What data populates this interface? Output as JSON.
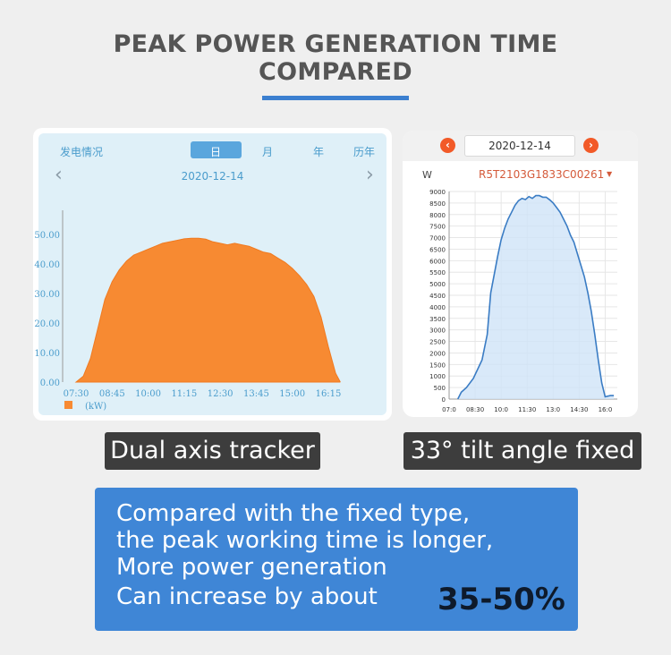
{
  "title": {
    "line1": "PEAK POWER GENERATION TIME",
    "line2": "COMPARED"
  },
  "left_panel": {
    "tabs": [
      "发电情况",
      "日",
      "月",
      "年",
      "历年"
    ],
    "active_tab": "日",
    "date": "2020-12-14",
    "legend_unit": "(kW)"
  },
  "right_panel": {
    "date": "2020-12-14",
    "unit": "W",
    "device": "R5T2103G1833C00261"
  },
  "labels": {
    "left": "Dual axis tracker",
    "right": "33° tilt angle fixed"
  },
  "summary": {
    "lines": [
      "Compared with the fixed type,",
      "the peak working time is longer,",
      "More power generation",
      "Can increase by about"
    ],
    "highlight": "35-50%"
  },
  "colors": {
    "accent": "#3f86d6",
    "left_fill": "#f78a32",
    "right_line": "#3a7cc4",
    "right_fill": "#cfe3f7"
  },
  "chart_data": [
    {
      "type": "area",
      "title": "",
      "ylabel": "",
      "unit": "kW",
      "ylim": [
        0,
        60
      ],
      "yticks": [
        "0.00",
        "10.00",
        "20.00",
        "30.00",
        "40.00",
        "50.00"
      ],
      "xticks": [
        "07:30",
        "08:45",
        "10:00",
        "11:15",
        "12:30",
        "13:45",
        "15:00",
        "16:15"
      ],
      "series": [
        {
          "x": [
            "07:30",
            "07:45",
            "08:00",
            "08:15",
            "08:30",
            "08:45",
            "09:00",
            "09:15",
            "09:30",
            "09:45",
            "10:00",
            "10:15",
            "10:30",
            "10:45",
            "11:00",
            "11:15",
            "11:30",
            "11:45",
            "12:00",
            "12:15",
            "12:30",
            "12:45",
            "13:00",
            "13:15",
            "13:30",
            "13:45",
            "14:00",
            "14:15",
            "14:30",
            "14:45",
            "15:00",
            "15:15",
            "15:30",
            "15:45",
            "16:00",
            "16:15",
            "16:30",
            "16:40"
          ],
          "values": [
            0,
            2,
            8,
            18,
            28,
            34,
            38,
            41,
            43,
            44,
            45,
            46,
            47,
            47.5,
            48,
            48.5,
            48.7,
            48.7,
            48.4,
            47.5,
            47,
            46.5,
            47,
            46.5,
            46,
            45,
            44,
            43.5,
            42,
            40.5,
            38.5,
            36,
            33,
            29,
            22,
            12,
            3,
            0
          ]
        }
      ]
    },
    {
      "type": "area",
      "title": "",
      "ylabel": "W",
      "ylim": [
        0,
        9000
      ],
      "yticks": [
        "0",
        "500",
        "1000",
        "1500",
        "2000",
        "2500",
        "3000",
        "3500",
        "4000",
        "4500",
        "5000",
        "5500",
        "6000",
        "6500",
        "7000",
        "7500",
        "8000",
        "8500",
        "9000"
      ],
      "xticks": [
        "07:0",
        "08:30",
        "10:0",
        "11:30",
        "13:0",
        "14:30",
        "16:0"
      ],
      "series": [
        {
          "x": [
            7.5,
            7.7,
            8.0,
            8.4,
            8.9,
            9.2,
            9.4,
            9.6,
            9.8,
            10.0,
            10.2,
            10.4,
            10.6,
            10.8,
            11.0,
            11.2,
            11.4,
            11.6,
            11.8,
            12.0,
            12.2,
            12.4,
            12.6,
            12.8,
            13.0,
            13.2,
            13.4,
            13.6,
            13.8,
            14.0,
            14.2,
            14.4,
            14.6,
            14.8,
            15.0,
            15.2,
            15.4,
            15.6,
            15.8,
            16.0,
            16.3,
            16.5
          ],
          "values": [
            0,
            300,
            500,
            900,
            1700,
            2800,
            4600,
            5400,
            6200,
            6900,
            7400,
            7800,
            8100,
            8400,
            8600,
            8700,
            8650,
            8780,
            8700,
            8820,
            8820,
            8750,
            8750,
            8640,
            8500,
            8300,
            8100,
            7800,
            7500,
            7100,
            6800,
            6300,
            5800,
            5300,
            4600,
            3800,
            2800,
            1700,
            700,
            100,
            150,
            150
          ]
        }
      ]
    }
  ]
}
